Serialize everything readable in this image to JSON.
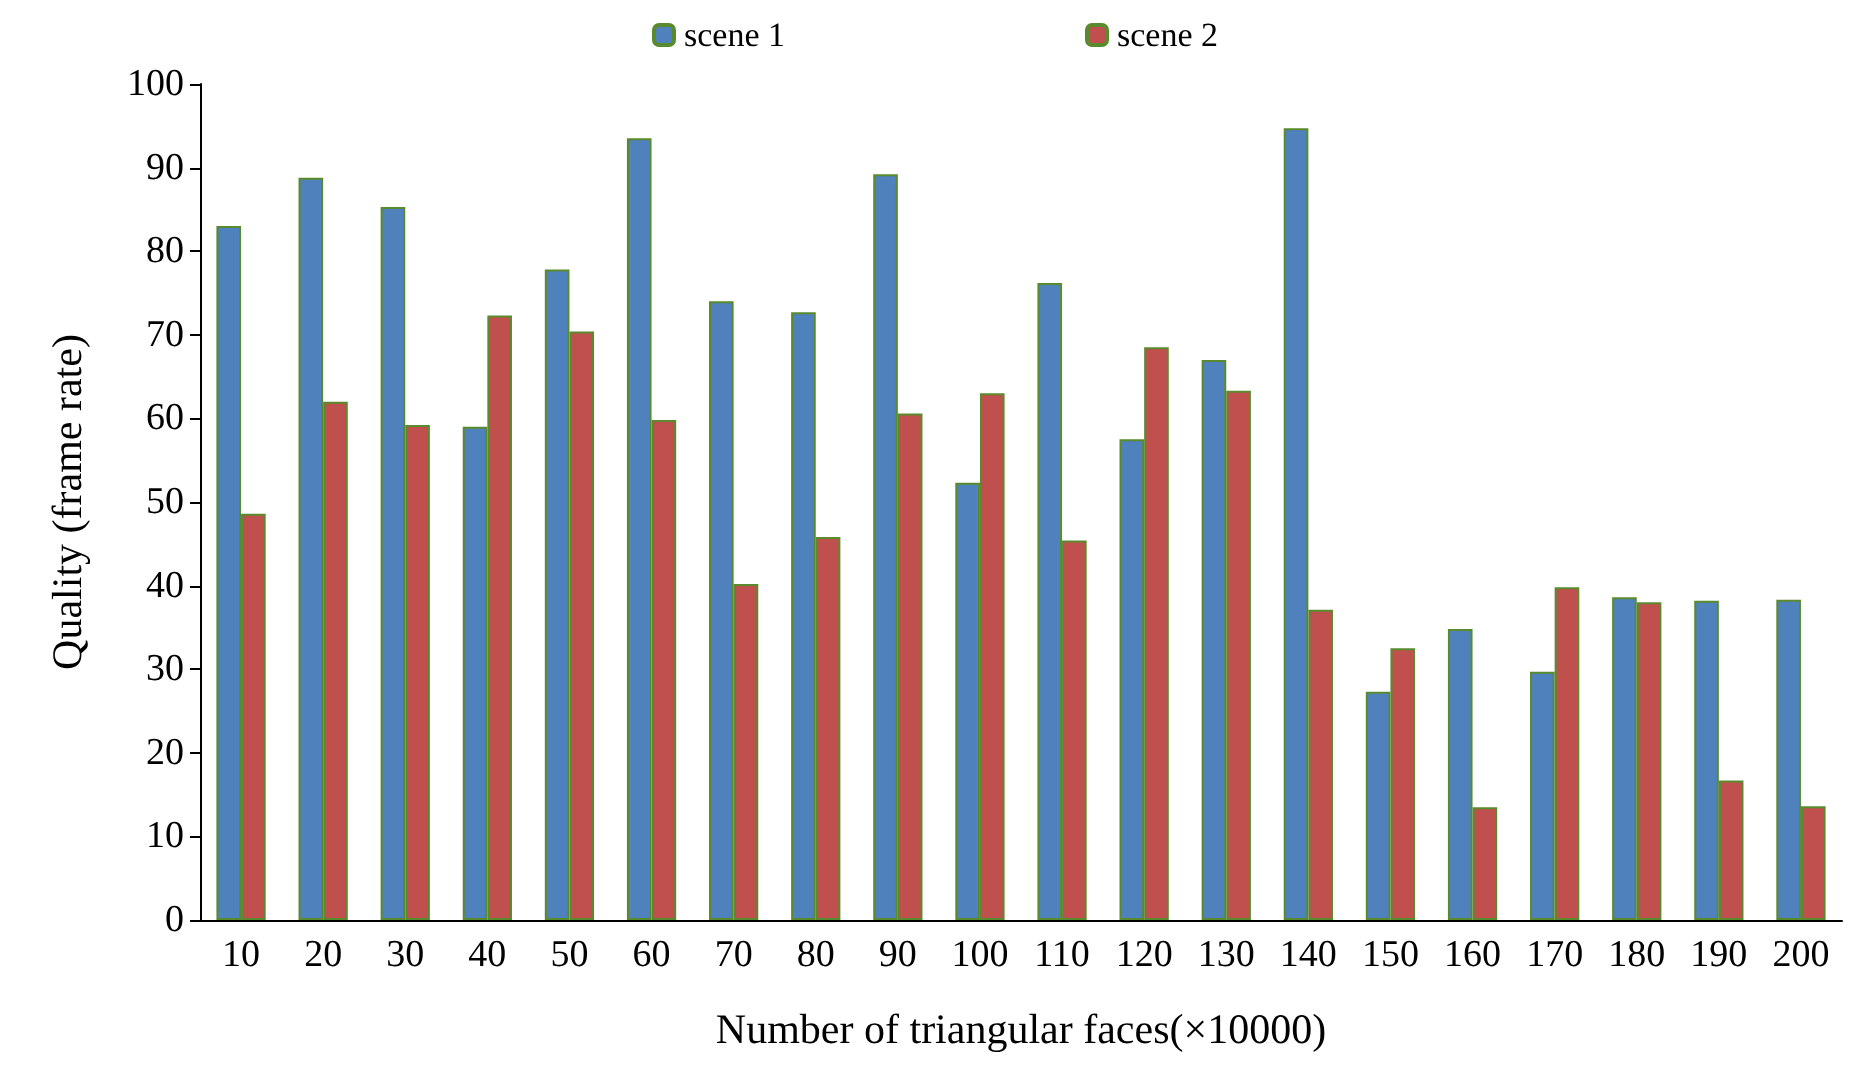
{
  "chart_data": {
    "type": "bar",
    "xlabel": "Number of triangular faces(×10000)",
    "ylabel": "Quality (frame rate)",
    "categories": [
      "10",
      "20",
      "30",
      "40",
      "50",
      "60",
      "70",
      "80",
      "90",
      "100",
      "110",
      "120",
      "130",
      "140",
      "150",
      "160",
      "170",
      "180",
      "190",
      "200"
    ],
    "series": [
      {
        "name": "scene 1",
        "color": "#4f81bd",
        "values": [
          83,
          88.8,
          85.3,
          59,
          77.8,
          93.5,
          74,
          72.7,
          89.2,
          52.3,
          76.2,
          57.5,
          67,
          94.7,
          27.3,
          34.8,
          29.7,
          38.6,
          38.2,
          38.3
        ]
      },
      {
        "name": "scene 2",
        "color": "#c0504d",
        "values": [
          48.6,
          62,
          59.2,
          72.3,
          70.4,
          59.8,
          40.2,
          45.8,
          60.6,
          63,
          45.4,
          68.5,
          63.3,
          37.1,
          32.5,
          13.5,
          39.8,
          38,
          16.7,
          13.6
        ]
      }
    ],
    "ylim": [
      0,
      100
    ],
    "yticks": [
      0,
      10,
      20,
      30,
      40,
      50,
      60,
      70,
      80,
      90,
      100
    ],
    "grid": false,
    "legend": "top"
  }
}
